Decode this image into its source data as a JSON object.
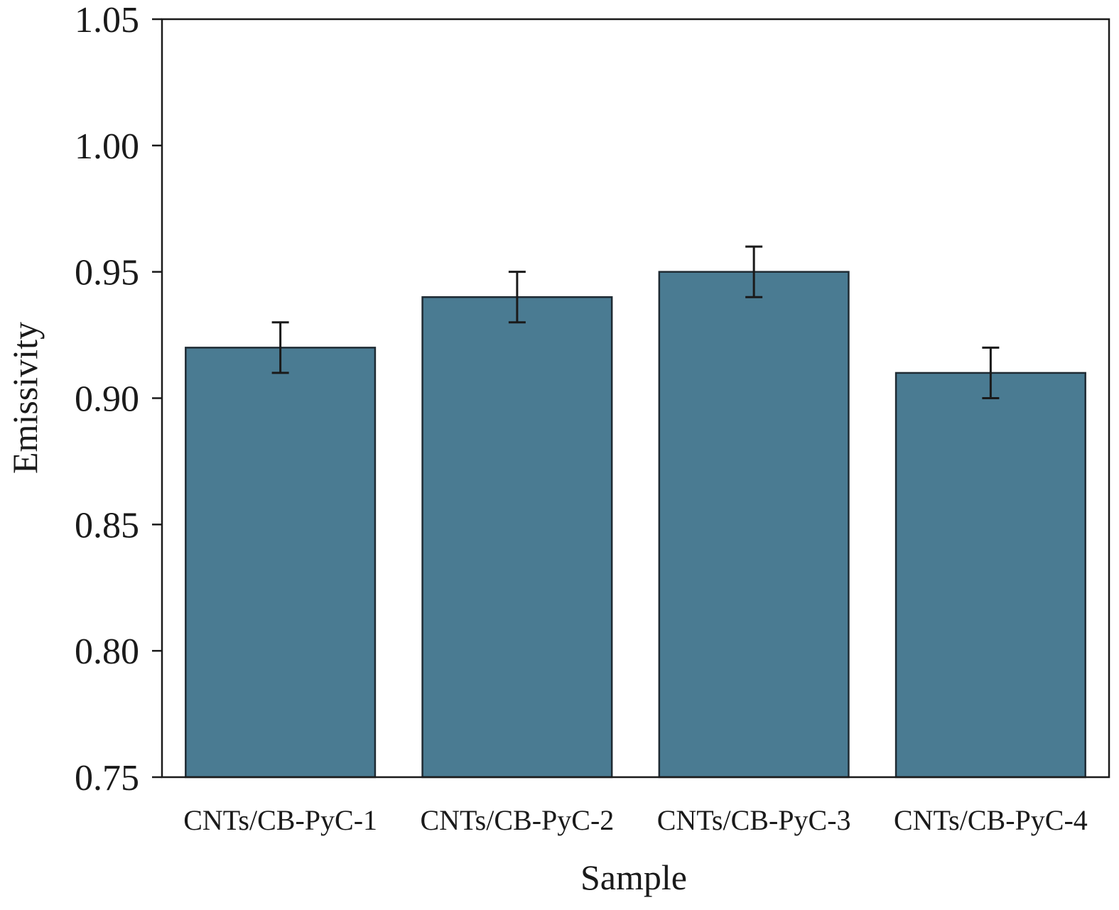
{
  "chart_data": {
    "type": "bar",
    "title": "",
    "xlabel": "Sample",
    "ylabel": "Emissivity",
    "categories": [
      "CNTs/CB-PyC-1",
      "CNTs/CB-PyC-2",
      "CNTs/CB-PyC-3",
      "CNTs/CB-PyC-4"
    ],
    "values": [
      0.92,
      0.94,
      0.95,
      0.91
    ],
    "errors": [
      0.01,
      0.01,
      0.01,
      0.01
    ],
    "ylim": [
      0.75,
      1.05
    ],
    "yticks": [
      "0.75",
      "0.80",
      "0.85",
      "0.90",
      "0.95",
      "1.00",
      "1.05"
    ],
    "grid": false,
    "colors": {
      "bar_fill": "#4a7b92",
      "bar_stroke": "#1f2b33",
      "error_bar": "#1a1a1a",
      "axis": "#1a1a1a"
    }
  }
}
